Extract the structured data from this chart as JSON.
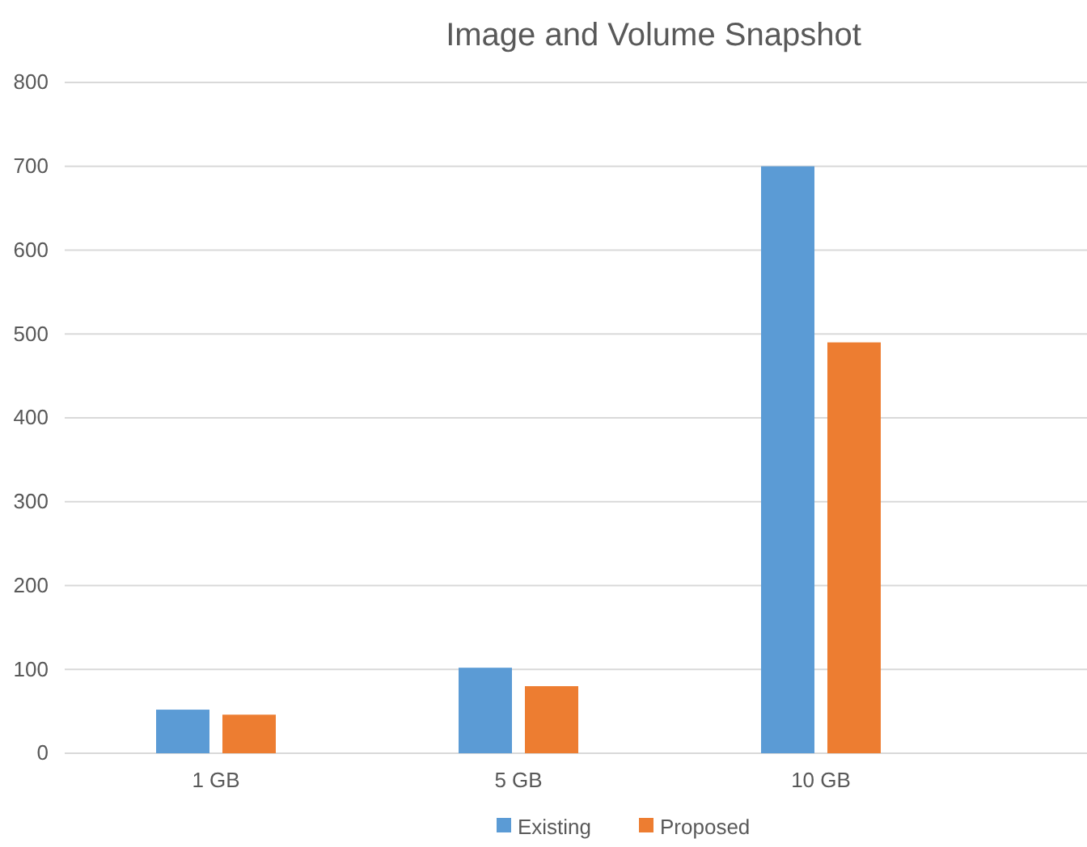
{
  "chart_data": {
    "type": "bar",
    "title": "Image and Volume Snapshot",
    "categories": [
      "1 GB",
      "5 GB",
      "10 GB"
    ],
    "series": [
      {
        "name": "Existing",
        "color": "#5b9bd5",
        "values": [
          52,
          102,
          700
        ]
      },
      {
        "name": "Proposed",
        "color": "#ed7d31",
        "values": [
          46,
          80,
          490
        ]
      }
    ],
    "ylim": [
      0,
      800
    ],
    "yticks": [
      0,
      100,
      200,
      300,
      400,
      500,
      600,
      700,
      800
    ],
    "grid": "y",
    "legend": "bottom"
  }
}
